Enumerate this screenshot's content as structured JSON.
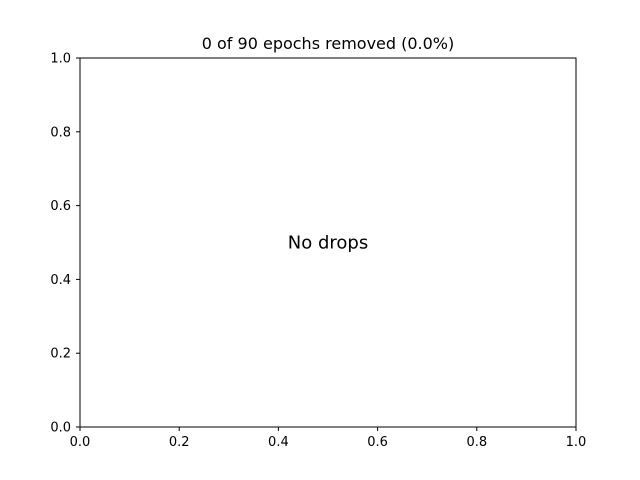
{
  "chart_data": {
    "type": "scatter",
    "title": "0 of 90 epochs removed (0.0%)",
    "xlabel": "",
    "ylabel": "",
    "xlim": [
      0,
      1
    ],
    "ylim": [
      0,
      1
    ],
    "xticks": [
      0.0,
      0.2,
      0.4,
      0.6,
      0.8,
      1.0
    ],
    "yticks": [
      0.0,
      0.2,
      0.4,
      0.6,
      0.8,
      1.0
    ],
    "xtick_labels": [
      "0.0",
      "0.2",
      "0.4",
      "0.6",
      "0.8",
      "1.0"
    ],
    "ytick_labels": [
      "0.0",
      "0.2",
      "0.4",
      "0.6",
      "0.8",
      "1.0"
    ],
    "grid": false,
    "series": [],
    "annotation": {
      "text": "No drops",
      "x": 0.5,
      "y": 0.5
    }
  }
}
